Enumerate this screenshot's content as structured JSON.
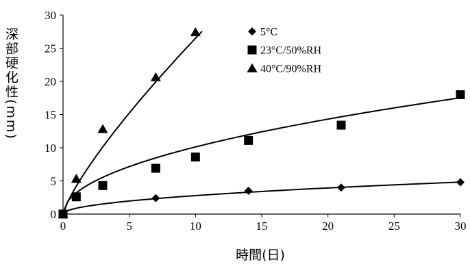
{
  "chart_data": {
    "type": "scatter",
    "title": "",
    "xlabel": "時間(日)",
    "ylabel": "深部硬化性(mm)",
    "xlim": [
      0,
      30
    ],
    "ylim": [
      0,
      30
    ],
    "xticks": [
      "0",
      "5",
      "10",
      "15",
      "20",
      "25",
      "30"
    ],
    "yticks": [
      "0",
      "5",
      "10",
      "15",
      "20",
      "25",
      "30"
    ],
    "grid": false,
    "legend_position": "top-right",
    "series": [
      {
        "name": "5°C",
        "marker": "diamond",
        "color": "#000000",
        "x": [
          0,
          7,
          14,
          21,
          30
        ],
        "y": [
          0,
          2.4,
          3.5,
          4.0,
          4.8
        ]
      },
      {
        "name": "23°C/50%RH",
        "marker": "square",
        "color": "#000000",
        "x": [
          0,
          1,
          3,
          7,
          10,
          14,
          21,
          30
        ],
        "y": [
          0,
          2.6,
          4.3,
          6.9,
          8.6,
          11.1,
          13.4,
          18.0
        ]
      },
      {
        "name": "40°C/90%RH",
        "marker": "triangle",
        "color": "#000000",
        "x": [
          0,
          1,
          3,
          7,
          10
        ],
        "y": [
          0,
          5.3,
          12.8,
          20.6,
          27.4
        ]
      }
    ],
    "trendlines": [
      {
        "series": "5°C",
        "x_max": 30,
        "k": 0.88,
        "n": 0.5
      },
      {
        "series": "23°C/50%RH",
        "x_max": 30,
        "k": 3.2,
        "n": 0.5
      },
      {
        "series": "40°C/90%RH",
        "x_max": 10.5,
        "k": 4.2,
        "n": 0.8
      }
    ]
  }
}
